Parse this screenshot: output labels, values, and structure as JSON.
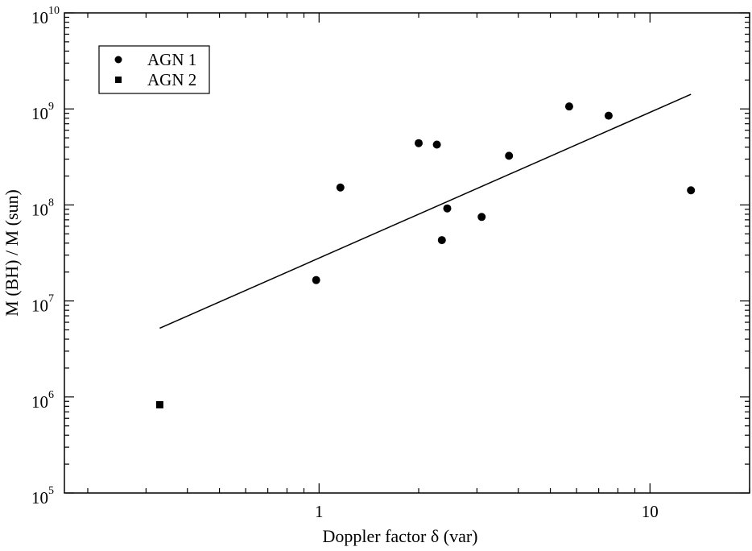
{
  "chart_data": {
    "type": "scatter",
    "xlabel": "Doppler factor   δ (var)",
    "ylabel": "M (BH) / M (sun)",
    "x_scale": "log",
    "y_scale": "log",
    "xlim": [
      0.17,
      20
    ],
    "ylim": [
      100000,
      10000000000
    ],
    "x_ticks": [
      {
        "value": 1,
        "label": "1"
      },
      {
        "value": 10,
        "label": "10"
      }
    ],
    "y_ticks": [
      {
        "value": 100000,
        "base": "10",
        "exp": "5"
      },
      {
        "value": 1000000,
        "base": "10",
        "exp": "6"
      },
      {
        "value": 10000000,
        "base": "10",
        "exp": "7"
      },
      {
        "value": 100000000,
        "base": "10",
        "exp": "8"
      },
      {
        "value": 1000000000,
        "base": "10",
        "exp": "9"
      },
      {
        "value": 10000000000,
        "base": "10",
        "exp": "10"
      }
    ],
    "grid": false,
    "legend_position": "top-left",
    "series": [
      {
        "name": "AGN 1",
        "marker": "circle",
        "points": [
          {
            "x": 0.98,
            "y": 16500000
          },
          {
            "x": 1.16,
            "y": 152000000
          },
          {
            "x": 2.0,
            "y": 440000000
          },
          {
            "x": 2.27,
            "y": 425000000
          },
          {
            "x": 2.35,
            "y": 43000000
          },
          {
            "x": 2.44,
            "y": 92000000
          },
          {
            "x": 3.1,
            "y": 75000000
          },
          {
            "x": 3.75,
            "y": 325000000
          },
          {
            "x": 5.7,
            "y": 1060000000
          },
          {
            "x": 7.5,
            "y": 850000000
          },
          {
            "x": 13.3,
            "y": 142000000
          }
        ]
      },
      {
        "name": "AGN 2",
        "marker": "square",
        "points": [
          {
            "x": 0.33,
            "y": 830000
          }
        ]
      }
    ],
    "fit_line": {
      "x": [
        0.33,
        13.3
      ],
      "y": [
        5200000,
        1420000000
      ]
    },
    "colors": {
      "ink": "#000000",
      "background": "#ffffff"
    }
  }
}
